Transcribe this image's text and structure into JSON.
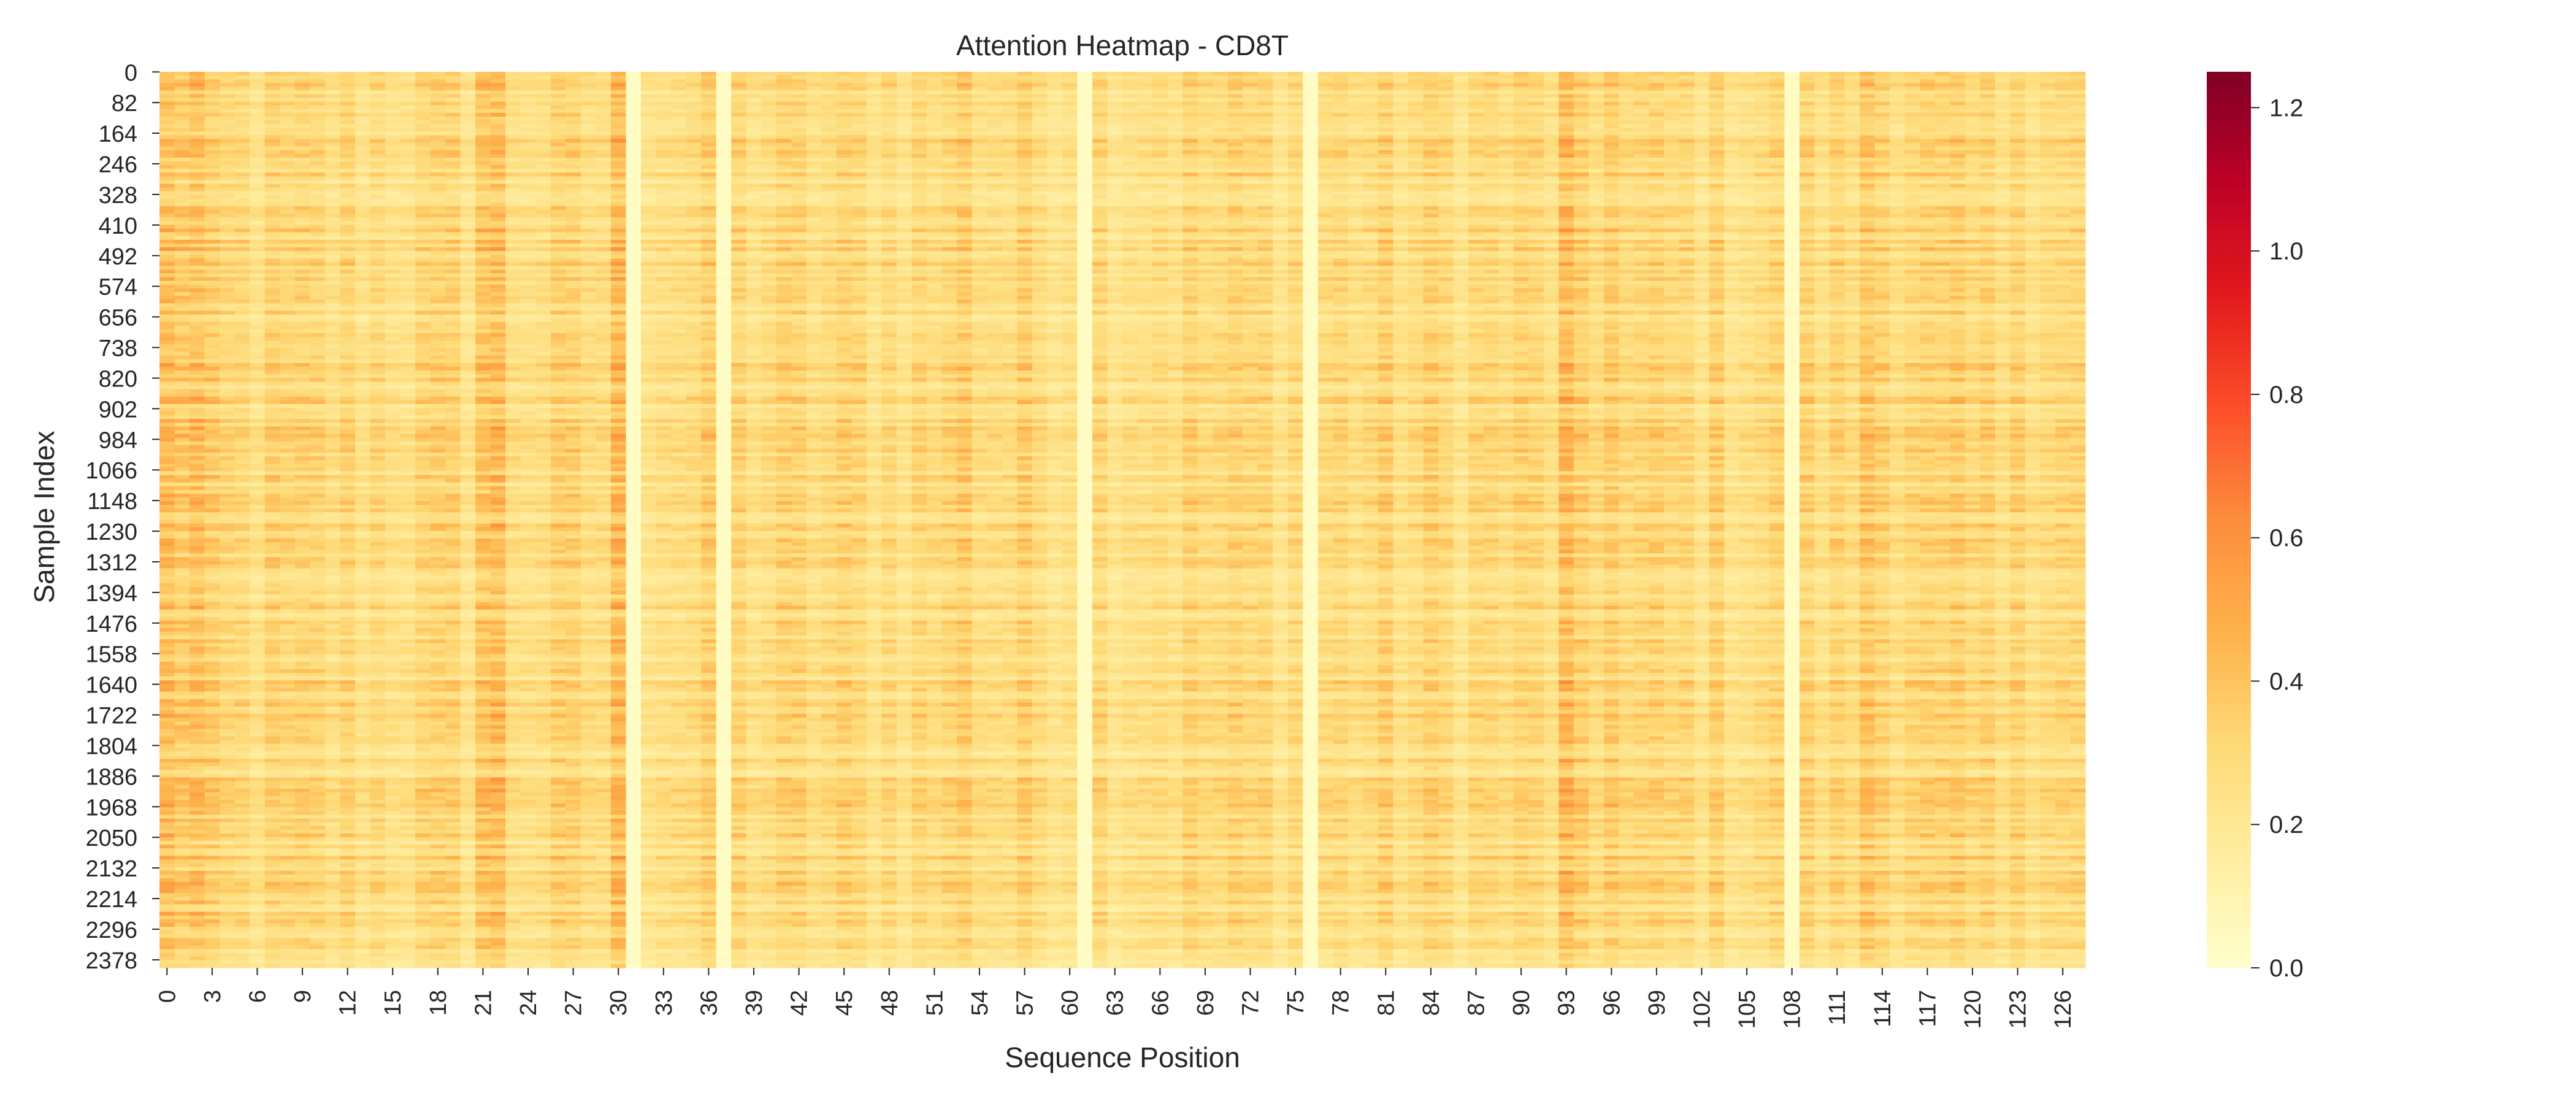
{
  "chart_data": {
    "type": "heatmap",
    "title": "Attention Heatmap - CD8T",
    "xlabel": "Sequence Position",
    "ylabel": "Sample Index",
    "n_positions": 128,
    "n_samples": 2400,
    "x_tick_labels": [
      "0",
      "3",
      "6",
      "9",
      "12",
      "15",
      "18",
      "21",
      "24",
      "27",
      "30",
      "33",
      "36",
      "39",
      "42",
      "45",
      "48",
      "51",
      "54",
      "57",
      "60",
      "63",
      "66",
      "69",
      "72",
      "75",
      "78",
      "81",
      "84",
      "87",
      "90",
      "93",
      "96",
      "99",
      "102",
      "105",
      "108",
      "111",
      "114",
      "117",
      "120",
      "123",
      "126"
    ],
    "y_tick_labels": [
      "0",
      "82",
      "164",
      "246",
      "328",
      "410",
      "492",
      "574",
      "656",
      "738",
      "820",
      "902",
      "984",
      "1066",
      "1148",
      "1230",
      "1312",
      "1394",
      "1476",
      "1558",
      "1640",
      "1722",
      "1804",
      "1886",
      "1968",
      "2050",
      "2132",
      "2214",
      "2296",
      "2378"
    ],
    "colorbar": {
      "colormap": "YlOrRd",
      "range": [
        0.0,
        1.25
      ],
      "tick_values": [
        0.0,
        0.2,
        0.4,
        0.6,
        0.8,
        1.0,
        1.2
      ],
      "tick_labels": [
        "0.0",
        "0.2",
        "0.4",
        "0.6",
        "0.8",
        "1.0",
        "1.2"
      ],
      "colors": [
        "#ffffcc",
        "#ffeda0",
        "#fed976",
        "#feb24c",
        "#fd8d3c",
        "#fc4e2a",
        "#e31a1c",
        "#bd0026",
        "#800026"
      ]
    },
    "low_attention_positions": [
      31,
      37,
      61,
      76,
      108
    ],
    "high_attention_positions": [
      0,
      1,
      2,
      21,
      22,
      30,
      53,
      93,
      96,
      113,
      114,
      123
    ],
    "typical_value_range": [
      0.1,
      0.45
    ]
  }
}
